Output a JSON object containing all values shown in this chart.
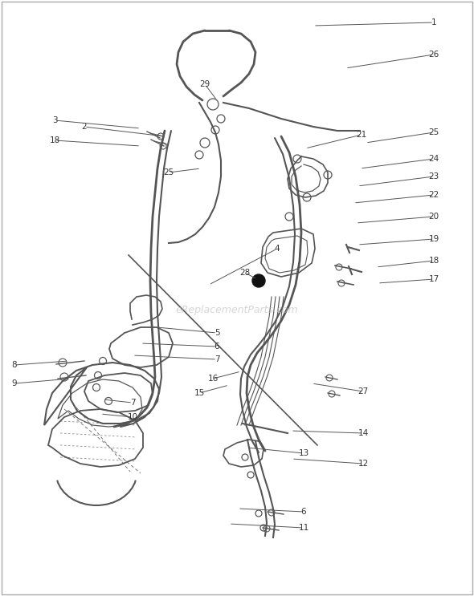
{
  "bg_color": "#ffffff",
  "line_color": "#555555",
  "text_color": "#333333",
  "watermark": "eReplacementParts.com",
  "watermark_color": "#bbbbbb",
  "figsize": [
    5.9,
    7.43
  ],
  "dpi": 100,
  "labels": [
    [
      "1",
      540,
      28,
      390,
      32
    ],
    [
      "26",
      540,
      68,
      430,
      85
    ],
    [
      "29",
      255,
      105,
      270,
      125
    ],
    [
      "2",
      105,
      158,
      205,
      170
    ],
    [
      "3",
      68,
      150,
      175,
      160
    ],
    [
      "18",
      68,
      175,
      175,
      182
    ],
    [
      "21",
      450,
      168,
      380,
      185
    ],
    [
      "25",
      540,
      165,
      455,
      178
    ],
    [
      "25",
      210,
      215,
      250,
      210
    ],
    [
      "24",
      540,
      198,
      448,
      210
    ],
    [
      "23",
      540,
      220,
      445,
      232
    ],
    [
      "22",
      540,
      243,
      440,
      253
    ],
    [
      "20",
      540,
      270,
      443,
      278
    ],
    [
      "19",
      540,
      298,
      445,
      305
    ],
    [
      "4",
      345,
      310,
      260,
      355
    ],
    [
      "18",
      540,
      325,
      468,
      333
    ],
    [
      "17",
      540,
      348,
      470,
      353
    ],
    [
      "28",
      305,
      340,
      320,
      348
    ],
    [
      "5",
      270,
      415,
      195,
      408
    ],
    [
      "6",
      270,
      432,
      175,
      428
    ],
    [
      "7",
      270,
      448,
      165,
      443
    ],
    [
      "8",
      18,
      455,
      85,
      450
    ],
    [
      "9",
      18,
      478,
      88,
      472
    ],
    [
      "15",
      248,
      490,
      285,
      480
    ],
    [
      "16",
      265,
      472,
      300,
      463
    ],
    [
      "27",
      452,
      488,
      388,
      478
    ],
    [
      "7",
      165,
      502,
      128,
      498
    ],
    [
      "10",
      165,
      520,
      125,
      516
    ],
    [
      "14",
      452,
      540,
      362,
      537
    ],
    [
      "13",
      378,
      565,
      307,
      558
    ],
    [
      "12",
      452,
      578,
      363,
      572
    ],
    [
      "6",
      378,
      638,
      296,
      634
    ],
    [
      "11",
      378,
      658,
      285,
      653
    ]
  ]
}
